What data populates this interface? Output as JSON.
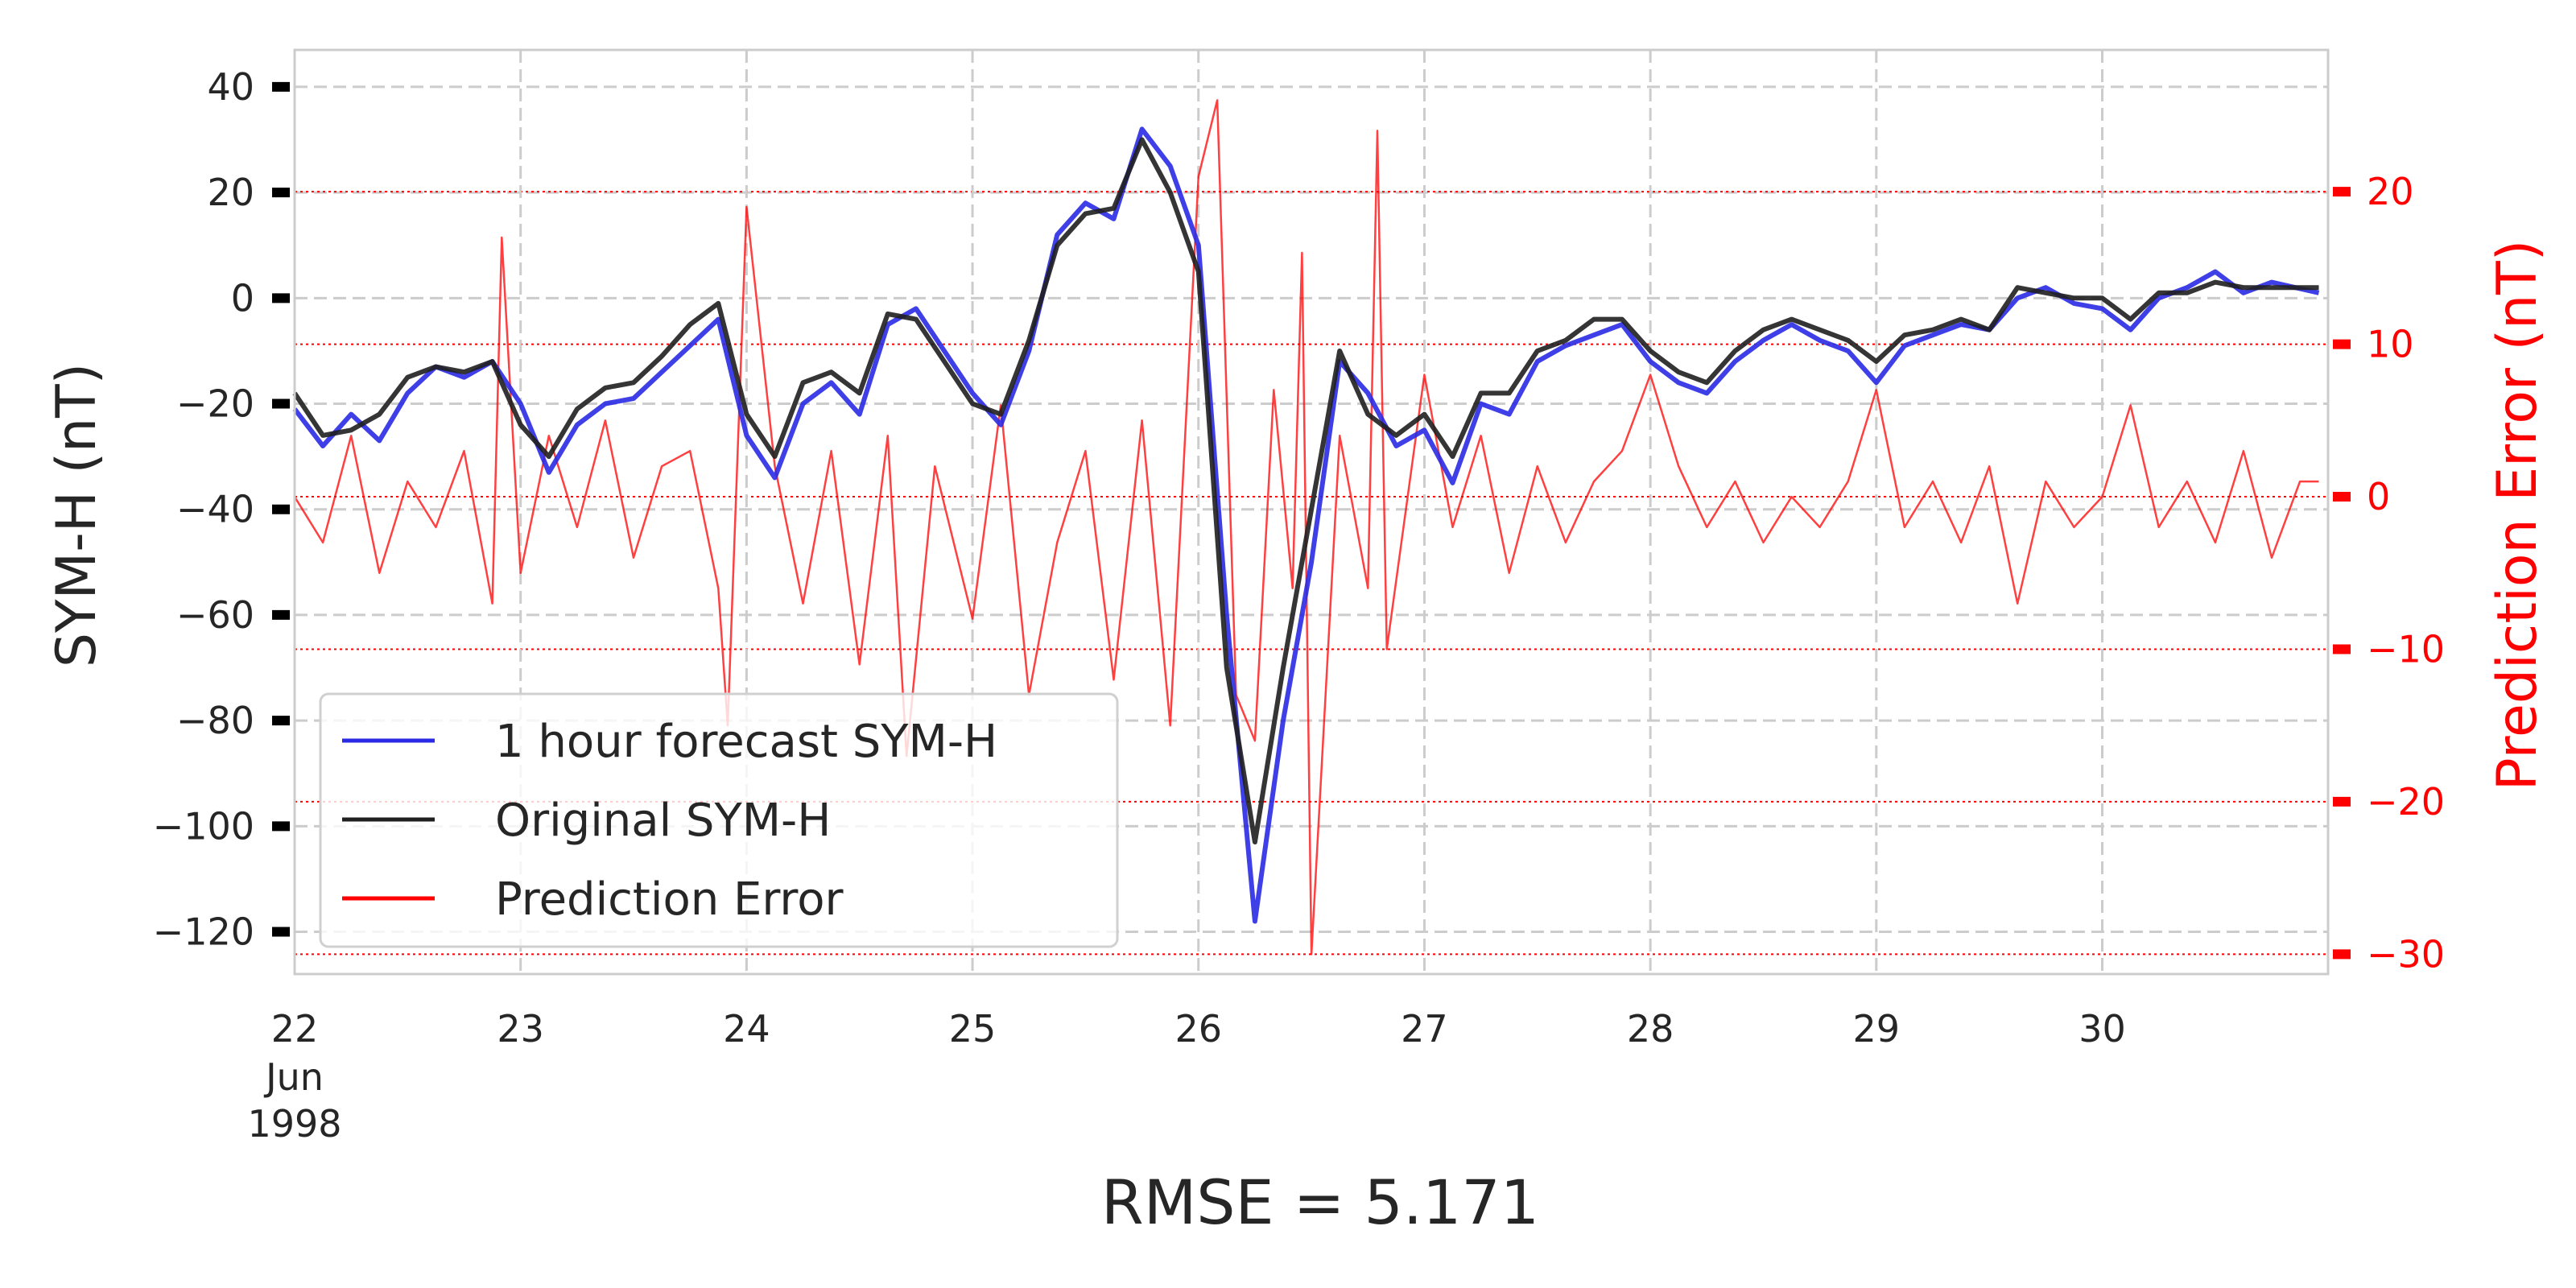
{
  "chart_data": {
    "type": "line",
    "x_unit": "date",
    "xlim": [
      "1998-06-22",
      "1998-06-30T23:59"
    ],
    "x_ticks": [
      {
        "date": "1998-06-22",
        "label": "22",
        "sub": [
          "Jun",
          "1998"
        ]
      },
      {
        "date": "1998-06-23",
        "label": "23"
      },
      {
        "date": "1998-06-24",
        "label": "24"
      },
      {
        "date": "1998-06-25",
        "label": "25"
      },
      {
        "date": "1998-06-26",
        "label": "26"
      },
      {
        "date": "1998-06-27",
        "label": "27"
      },
      {
        "date": "1998-06-28",
        "label": "28"
      },
      {
        "date": "1998-06-29",
        "label": "29"
      },
      {
        "date": "1998-06-30",
        "label": "30"
      }
    ],
    "ylabel": "SYM-H (nT)",
    "ylim": [
      -128,
      47
    ],
    "y_ticks": [
      40,
      20,
      0,
      -20,
      -40,
      -60,
      -80,
      -100,
      -120
    ],
    "y_tick_labels": [
      "40",
      "20",
      "0",
      "−20",
      "−40",
      "−60",
      "−80",
      "−100",
      "−120"
    ],
    "y2label": "Prediction Error (nT)",
    "y2lim": [
      -31.3,
      29.3
    ],
    "y2_ticks": [
      20,
      10,
      0,
      -10,
      -20,
      -30
    ],
    "y2_tick_labels": [
      "20",
      "10",
      "0",
      "−10",
      "−20",
      "−30"
    ],
    "grid": true,
    "legend_position": "lower-left",
    "annotation": "RMSE = 5.171",
    "series": [
      {
        "name": "1 hour forecast SYM-H",
        "color": "#2a2ae6",
        "axis": "left",
        "points": [
          [
            "1998-06-22T00:00",
            -21
          ],
          [
            "1998-06-22T03:00",
            -28
          ],
          [
            "1998-06-22T06:00",
            -22
          ],
          [
            "1998-06-22T09:00",
            -27
          ],
          [
            "1998-06-22T12:00",
            -18
          ],
          [
            "1998-06-22T15:00",
            -13
          ],
          [
            "1998-06-22T18:00",
            -15
          ],
          [
            "1998-06-22T21:00",
            -12
          ],
          [
            "1998-06-23T00:00",
            -20
          ],
          [
            "1998-06-23T03:00",
            -33
          ],
          [
            "1998-06-23T06:00",
            -24
          ],
          [
            "1998-06-23T09:00",
            -20
          ],
          [
            "1998-06-23T12:00",
            -19
          ],
          [
            "1998-06-23T15:00",
            -14
          ],
          [
            "1998-06-23T18:00",
            -9
          ],
          [
            "1998-06-23T21:00",
            -4
          ],
          [
            "1998-06-24T00:00",
            -26
          ],
          [
            "1998-06-24T03:00",
            -34
          ],
          [
            "1998-06-24T06:00",
            -20
          ],
          [
            "1998-06-24T09:00",
            -16
          ],
          [
            "1998-06-24T12:00",
            -22
          ],
          [
            "1998-06-24T15:00",
            -5
          ],
          [
            "1998-06-24T18:00",
            -2
          ],
          [
            "1998-06-24T21:00",
            -10
          ],
          [
            "1998-06-25T00:00",
            -18
          ],
          [
            "1998-06-25T03:00",
            -24
          ],
          [
            "1998-06-25T06:00",
            -10
          ],
          [
            "1998-06-25T09:00",
            12
          ],
          [
            "1998-06-25T12:00",
            18
          ],
          [
            "1998-06-25T15:00",
            15
          ],
          [
            "1998-06-25T18:00",
            32
          ],
          [
            "1998-06-25T21:00",
            25
          ],
          [
            "1998-06-26T00:00",
            10
          ],
          [
            "1998-06-26T03:00",
            -60
          ],
          [
            "1998-06-26T06:00",
            -118
          ],
          [
            "1998-06-26T09:00",
            -80
          ],
          [
            "1998-06-26T12:00",
            -50
          ],
          [
            "1998-06-26T15:00",
            -12
          ],
          [
            "1998-06-26T18:00",
            -18
          ],
          [
            "1998-06-26T21:00",
            -28
          ],
          [
            "1998-06-27T00:00",
            -25
          ],
          [
            "1998-06-27T03:00",
            -35
          ],
          [
            "1998-06-27T06:00",
            -20
          ],
          [
            "1998-06-27T09:00",
            -22
          ],
          [
            "1998-06-27T12:00",
            -12
          ],
          [
            "1998-06-27T15:00",
            -9
          ],
          [
            "1998-06-27T18:00",
            -7
          ],
          [
            "1998-06-27T21:00",
            -5
          ],
          [
            "1998-06-28T00:00",
            -12
          ],
          [
            "1998-06-28T03:00",
            -16
          ],
          [
            "1998-06-28T06:00",
            -18
          ],
          [
            "1998-06-28T09:00",
            -12
          ],
          [
            "1998-06-28T12:00",
            -8
          ],
          [
            "1998-06-28T15:00",
            -5
          ],
          [
            "1998-06-28T18:00",
            -8
          ],
          [
            "1998-06-28T21:00",
            -10
          ],
          [
            "1998-06-29T00:00",
            -16
          ],
          [
            "1998-06-29T03:00",
            -9
          ],
          [
            "1998-06-29T06:00",
            -7
          ],
          [
            "1998-06-29T09:00",
            -5
          ],
          [
            "1998-06-29T12:00",
            -6
          ],
          [
            "1998-06-29T15:00",
            0
          ],
          [
            "1998-06-29T18:00",
            2
          ],
          [
            "1998-06-29T21:00",
            -1
          ],
          [
            "1998-06-30T00:00",
            -2
          ],
          [
            "1998-06-30T03:00",
            -6
          ],
          [
            "1998-06-30T06:00",
            0
          ],
          [
            "1998-06-30T09:00",
            2
          ],
          [
            "1998-06-30T12:00",
            5
          ],
          [
            "1998-06-30T15:00",
            1
          ],
          [
            "1998-06-30T18:00",
            3
          ],
          [
            "1998-06-30T23:00",
            1
          ]
        ]
      },
      {
        "name": "Original SYM-H",
        "color": "#1f1f1f",
        "axis": "left",
        "points": [
          [
            "1998-06-22T00:00",
            -18
          ],
          [
            "1998-06-22T03:00",
            -26
          ],
          [
            "1998-06-22T06:00",
            -25
          ],
          [
            "1998-06-22T09:00",
            -22
          ],
          [
            "1998-06-22T12:00",
            -15
          ],
          [
            "1998-06-22T15:00",
            -13
          ],
          [
            "1998-06-22T18:00",
            -14
          ],
          [
            "1998-06-22T21:00",
            -12
          ],
          [
            "1998-06-23T00:00",
            -24
          ],
          [
            "1998-06-23T03:00",
            -30
          ],
          [
            "1998-06-23T06:00",
            -21
          ],
          [
            "1998-06-23T09:00",
            -17
          ],
          [
            "1998-06-23T12:00",
            -16
          ],
          [
            "1998-06-23T15:00",
            -11
          ],
          [
            "1998-06-23T18:00",
            -5
          ],
          [
            "1998-06-23T21:00",
            -1
          ],
          [
            "1998-06-24T00:00",
            -22
          ],
          [
            "1998-06-24T03:00",
            -30
          ],
          [
            "1998-06-24T06:00",
            -16
          ],
          [
            "1998-06-24T09:00",
            -14
          ],
          [
            "1998-06-24T12:00",
            -18
          ],
          [
            "1998-06-24T15:00",
            -3
          ],
          [
            "1998-06-24T18:00",
            -4
          ],
          [
            "1998-06-24T21:00",
            -12
          ],
          [
            "1998-06-25T00:00",
            -20
          ],
          [
            "1998-06-25T03:00",
            -22
          ],
          [
            "1998-06-25T06:00",
            -8
          ],
          [
            "1998-06-25T09:00",
            10
          ],
          [
            "1998-06-25T12:00",
            16
          ],
          [
            "1998-06-25T15:00",
            17
          ],
          [
            "1998-06-25T18:00",
            30
          ],
          [
            "1998-06-25T21:00",
            20
          ],
          [
            "1998-06-26T00:00",
            5
          ],
          [
            "1998-06-26T03:00",
            -70
          ],
          [
            "1998-06-26T06:00",
            -103
          ],
          [
            "1998-06-26T09:00",
            -70
          ],
          [
            "1998-06-26T12:00",
            -40
          ],
          [
            "1998-06-26T15:00",
            -10
          ],
          [
            "1998-06-26T18:00",
            -22
          ],
          [
            "1998-06-26T21:00",
            -26
          ],
          [
            "1998-06-27T00:00",
            -22
          ],
          [
            "1998-06-27T03:00",
            -30
          ],
          [
            "1998-06-27T06:00",
            -18
          ],
          [
            "1998-06-27T09:00",
            -18
          ],
          [
            "1998-06-27T12:00",
            -10
          ],
          [
            "1998-06-27T15:00",
            -8
          ],
          [
            "1998-06-27T18:00",
            -4
          ],
          [
            "1998-06-27T21:00",
            -4
          ],
          [
            "1998-06-28T00:00",
            -10
          ],
          [
            "1998-06-28T03:00",
            -14
          ],
          [
            "1998-06-28T06:00",
            -16
          ],
          [
            "1998-06-28T09:00",
            -10
          ],
          [
            "1998-06-28T12:00",
            -6
          ],
          [
            "1998-06-28T15:00",
            -4
          ],
          [
            "1998-06-28T18:00",
            -6
          ],
          [
            "1998-06-28T21:00",
            -8
          ],
          [
            "1998-06-29T00:00",
            -12
          ],
          [
            "1998-06-29T03:00",
            -7
          ],
          [
            "1998-06-29T06:00",
            -6
          ],
          [
            "1998-06-29T09:00",
            -4
          ],
          [
            "1998-06-29T12:00",
            -6
          ],
          [
            "1998-06-29T15:00",
            2
          ],
          [
            "1998-06-29T18:00",
            1
          ],
          [
            "1998-06-29T21:00",
            0
          ],
          [
            "1998-06-30T00:00",
            0
          ],
          [
            "1998-06-30T03:00",
            -4
          ],
          [
            "1998-06-30T06:00",
            1
          ],
          [
            "1998-06-30T09:00",
            1
          ],
          [
            "1998-06-30T12:00",
            3
          ],
          [
            "1998-06-30T15:00",
            2
          ],
          [
            "1998-06-30T18:00",
            2
          ],
          [
            "1998-06-30T23:00",
            2
          ]
        ]
      },
      {
        "name": "Prediction Error",
        "color": "#ff0000",
        "axis": "right",
        "points": [
          [
            "1998-06-22T00:00",
            0
          ],
          [
            "1998-06-22T03:00",
            -3
          ],
          [
            "1998-06-22T06:00",
            4
          ],
          [
            "1998-06-22T09:00",
            -5
          ],
          [
            "1998-06-22T12:00",
            1
          ],
          [
            "1998-06-22T15:00",
            -2
          ],
          [
            "1998-06-22T18:00",
            3
          ],
          [
            "1998-06-22T21:00",
            -7
          ],
          [
            "1998-06-22T22:00",
            17
          ],
          [
            "1998-06-23T00:00",
            -5
          ],
          [
            "1998-06-23T03:00",
            4
          ],
          [
            "1998-06-23T06:00",
            -2
          ],
          [
            "1998-06-23T09:00",
            5
          ],
          [
            "1998-06-23T12:00",
            -4
          ],
          [
            "1998-06-23T15:00",
            2
          ],
          [
            "1998-06-23T18:00",
            3
          ],
          [
            "1998-06-23T21:00",
            -6
          ],
          [
            "1998-06-23T22:00",
            -15
          ],
          [
            "1998-06-24T00:00",
            19
          ],
          [
            "1998-06-24T03:00",
            2
          ],
          [
            "1998-06-24T06:00",
            -7
          ],
          [
            "1998-06-24T09:00",
            3
          ],
          [
            "1998-06-24T12:00",
            -11
          ],
          [
            "1998-06-24T15:00",
            4
          ],
          [
            "1998-06-24T17:00",
            -17
          ],
          [
            "1998-06-24T20:00",
            2
          ],
          [
            "1998-06-25T00:00",
            -8
          ],
          [
            "1998-06-25T03:00",
            6
          ],
          [
            "1998-06-25T06:00",
            -13
          ],
          [
            "1998-06-25T09:00",
            -3
          ],
          [
            "1998-06-25T12:00",
            3
          ],
          [
            "1998-06-25T15:00",
            -12
          ],
          [
            "1998-06-25T18:00",
            5
          ],
          [
            "1998-06-25T21:00",
            -15
          ],
          [
            "1998-06-26T00:00",
            21
          ],
          [
            "1998-06-26T02:00",
            26
          ],
          [
            "1998-06-26T04:00",
            -13
          ],
          [
            "1998-06-26T06:00",
            -16
          ],
          [
            "1998-06-26T08:00",
            7
          ],
          [
            "1998-06-26T10:00",
            -6
          ],
          [
            "1998-06-26T11:00",
            16
          ],
          [
            "1998-06-26T12:00",
            -30
          ],
          [
            "1998-06-26T15:00",
            4
          ],
          [
            "1998-06-26T18:00",
            -6
          ],
          [
            "1998-06-26T19:00",
            24
          ],
          [
            "1998-06-26T20:00",
            -10
          ],
          [
            "1998-06-27T00:00",
            8
          ],
          [
            "1998-06-27T03:00",
            -2
          ],
          [
            "1998-06-27T06:00",
            4
          ],
          [
            "1998-06-27T09:00",
            -5
          ],
          [
            "1998-06-27T12:00",
            2
          ],
          [
            "1998-06-27T15:00",
            -3
          ],
          [
            "1998-06-27T18:00",
            1
          ],
          [
            "1998-06-27T21:00",
            3
          ],
          [
            "1998-06-28T00:00",
            8
          ],
          [
            "1998-06-28T03:00",
            2
          ],
          [
            "1998-06-28T06:00",
            -2
          ],
          [
            "1998-06-28T09:00",
            1
          ],
          [
            "1998-06-28T12:00",
            -3
          ],
          [
            "1998-06-28T15:00",
            0
          ],
          [
            "1998-06-28T18:00",
            -2
          ],
          [
            "1998-06-28T21:00",
            1
          ],
          [
            "1998-06-29T00:00",
            7
          ],
          [
            "1998-06-29T03:00",
            -2
          ],
          [
            "1998-06-29T06:00",
            1
          ],
          [
            "1998-06-29T09:00",
            -3
          ],
          [
            "1998-06-29T12:00",
            2
          ],
          [
            "1998-06-29T15:00",
            -7
          ],
          [
            "1998-06-29T18:00",
            1
          ],
          [
            "1998-06-29T21:00",
            -2
          ],
          [
            "1998-06-30T00:00",
            0
          ],
          [
            "1998-06-30T03:00",
            6
          ],
          [
            "1998-06-30T06:00",
            -2
          ],
          [
            "1998-06-30T09:00",
            1
          ],
          [
            "1998-06-30T12:00",
            -3
          ],
          [
            "1998-06-30T15:00",
            3
          ],
          [
            "1998-06-30T18:00",
            -4
          ],
          [
            "1998-06-30T21:00",
            1
          ],
          [
            "1998-06-30T23:00",
            1
          ]
        ]
      }
    ]
  }
}
